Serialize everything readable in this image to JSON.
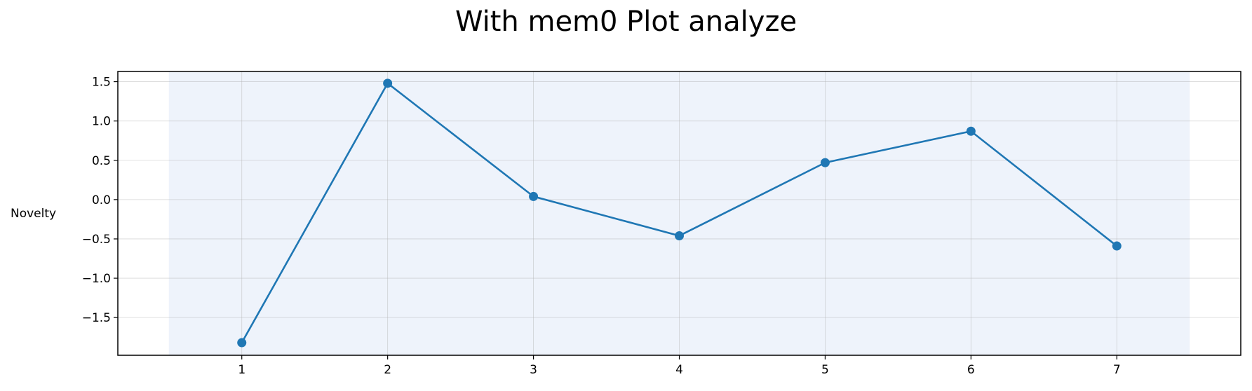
{
  "chart_data": {
    "type": "line",
    "title": "With mem0 Plot analyze",
    "xlabel": "",
    "ylabel": "Novelty",
    "x": [
      1,
      2,
      3,
      4,
      5,
      6,
      7
    ],
    "x_ticks": [
      "1",
      "2",
      "3",
      "4",
      "5",
      "6",
      "7"
    ],
    "xlim": [
      0.15,
      7.85
    ],
    "ylim": [
      -1.98,
      1.63
    ],
    "y_ticks": [
      1.5,
      1.0,
      0.5,
      0.0,
      -0.5,
      -1.0,
      -1.5
    ],
    "y_tick_labels": [
      "1.5",
      "1.0",
      "0.5",
      "0.0",
      "−0.5",
      "−1.0",
      "−1.5"
    ],
    "series": [
      {
        "values": [
          -1.82,
          1.48,
          0.04,
          -0.46,
          0.47,
          0.87,
          -0.59
        ],
        "color": "#1f77b4",
        "marker": "circle"
      }
    ],
    "shaded_region": {
      "x_from": 0.5,
      "x_to": 7.5,
      "color": "#eef3fb"
    },
    "grid": true,
    "legend": "none"
  }
}
